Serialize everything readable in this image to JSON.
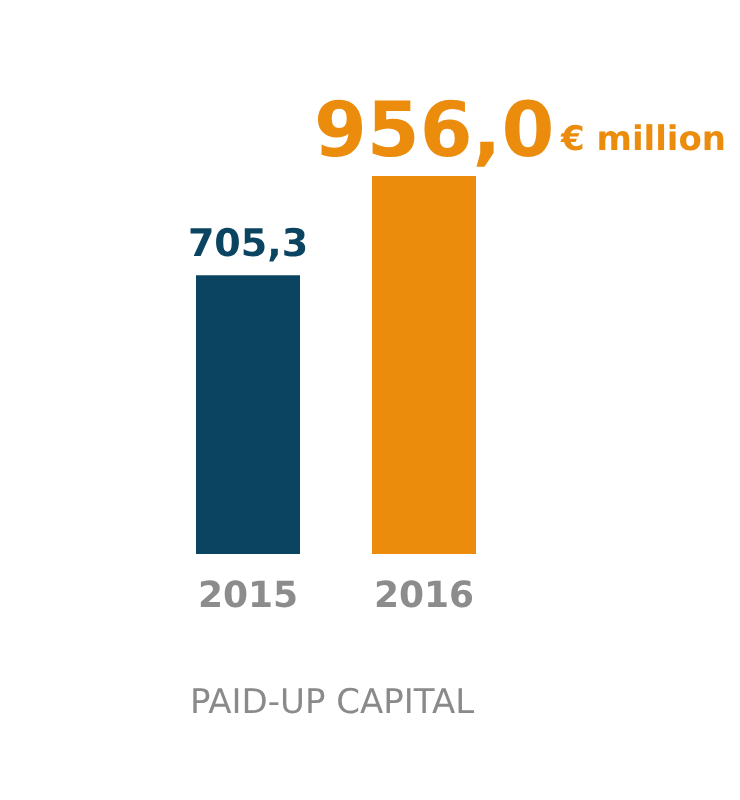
{
  "chart_data": {
    "type": "bar",
    "title": "PAID-UP CAPITAL",
    "categories": [
      "2015",
      "2016"
    ],
    "values": [
      705.3,
      956.0
    ],
    "colors": [
      "#0b4461",
      "#ec8c0d"
    ],
    "value_labels": [
      "705,3",
      "956,0"
    ],
    "annotations": [
      "€ million"
    ]
  }
}
